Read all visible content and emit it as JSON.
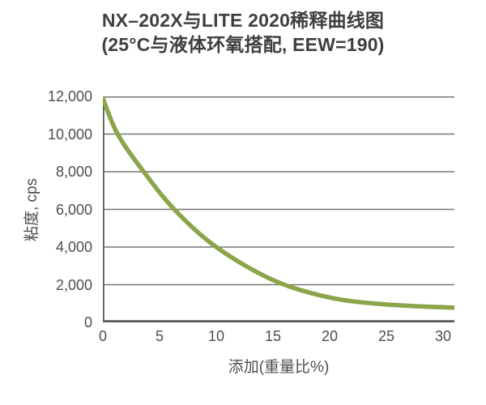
{
  "figure": {
    "title_line1": "NX–202X与LITE 2020稀释曲线图",
    "title_line2": "(25°C与液体环氧搭配, EEW=190)"
  },
  "chart_data": {
    "type": "line",
    "title": "NX–202X与LITE 2020稀释曲线图 (25°C与液体环氧搭配, EEW=190)",
    "xlabel": "添加(重量比%)",
    "ylabel": "粘度, cps",
    "xlim": [
      0,
      31
    ],
    "ylim": [
      0,
      12000
    ],
    "grid": "horizontal",
    "legend": "none",
    "xticks": [
      {
        "value": 0,
        "label": "0"
      },
      {
        "value": 5,
        "label": "5"
      },
      {
        "value": 10,
        "label": "10"
      },
      {
        "value": 15,
        "label": "15"
      },
      {
        "value": 20,
        "label": "20"
      },
      {
        "value": 25,
        "label": "25"
      },
      {
        "value": 30,
        "label": "30"
      }
    ],
    "yticks": [
      {
        "value": 0,
        "label": "0"
      },
      {
        "value": 2000,
        "label": "2,000"
      },
      {
        "value": 4000,
        "label": "4,000"
      },
      {
        "value": 6000,
        "label": "6,000"
      },
      {
        "value": 8000,
        "label": "8,000"
      },
      {
        "value": 10000,
        "label": "10,000"
      },
      {
        "value": 12000,
        "label": "12,000"
      }
    ],
    "series": [
      {
        "name": "NX-202X与LITE 2020稀释曲线",
        "x": [
          0,
          1.3,
          3.6,
          6.3,
          10,
          15,
          20,
          25,
          31
        ],
        "values": [
          11900,
          10000,
          8000,
          6000,
          4000,
          2250,
          1320,
          950,
          780
        ],
        "color": "#8CA54B",
        "stroke_width": 5.5
      }
    ],
    "colors": {
      "grid": "#767679",
      "axis": "#58595B",
      "text": "#4D4E50",
      "background": "#FFFFFF"
    }
  }
}
